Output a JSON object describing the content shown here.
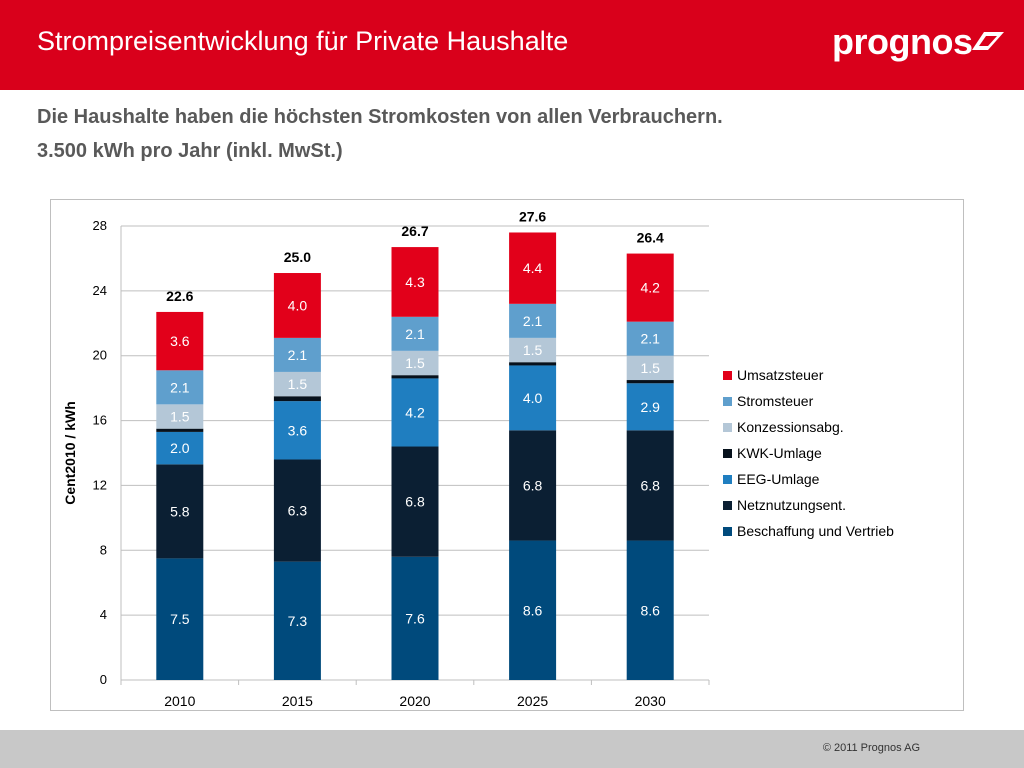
{
  "header": {
    "title": "Strompreisentwicklung für Private Haushalte",
    "logo": "prognos"
  },
  "subtitle": {
    "line1": "Die Haushalte haben die höchsten Stromkosten von allen Verbrauchern.",
    "line2": "3.500 kWh pro Jahr (inkl. MwSt.)"
  },
  "footer": {
    "copyright": "© 2011 Prognos AG"
  },
  "colors": {
    "header_red": "#d9001b",
    "footer_gray": "#c8c8c8"
  },
  "chart_data": {
    "type": "bar",
    "stacked": true,
    "categories": [
      "2010",
      "2015",
      "2020",
      "2025",
      "2030"
    ],
    "ylabel": "Cent2010 / kWh",
    "ylim": [
      0,
      28
    ],
    "yticks": [
      0,
      4,
      8,
      12,
      16,
      20,
      24,
      28
    ],
    "grid": true,
    "legend_position": "right",
    "totals": [
      22.6,
      25.0,
      26.7,
      27.6,
      26.4
    ],
    "series": [
      {
        "name": "Beschaffung und Vertrieb",
        "color": "#004a7c",
        "values": [
          7.5,
          7.3,
          7.6,
          8.6,
          8.6
        ],
        "labels": [
          "7.5",
          "7.3",
          "7.6",
          "8.6",
          "8.6"
        ]
      },
      {
        "name": "Netznutzungsent.",
        "color": "#0b1f33",
        "values": [
          5.8,
          6.3,
          6.8,
          6.8,
          6.8
        ],
        "labels": [
          "5.8",
          "6.3",
          "6.8",
          "6.8",
          "6.8"
        ]
      },
      {
        "name": "EEG-Umlage",
        "color": "#1f7ec0",
        "values": [
          2.0,
          3.6,
          4.2,
          4.0,
          2.9
        ],
        "labels": [
          "2.0",
          "3.6",
          "4.2",
          "4.0",
          "2.9"
        ]
      },
      {
        "name": "KWK-Umlage",
        "color": "#07111c",
        "values": [
          0.2,
          0.3,
          0.2,
          0.2,
          0.2
        ],
        "labels": [
          "",
          "",
          "",
          "",
          ""
        ]
      },
      {
        "name": "Konzessionsabg.",
        "color": "#b4c7d7",
        "values": [
          1.5,
          1.5,
          1.5,
          1.5,
          1.5
        ],
        "labels": [
          "1.5",
          "1.5",
          "1.5",
          "1.5",
          "1.5"
        ]
      },
      {
        "name": "Stromsteuer",
        "color": "#5f9fcd",
        "values": [
          2.1,
          2.1,
          2.1,
          2.1,
          2.1
        ],
        "labels": [
          "2.1",
          "2.1",
          "2.1",
          "2.1",
          "2.1"
        ]
      },
      {
        "name": "Umsatzsteuer",
        "color": "#e2001a",
        "values": [
          3.6,
          4.0,
          4.3,
          4.4,
          4.2
        ],
        "labels": [
          "3.6",
          "4.0",
          "4.3",
          "4.4",
          "4.2"
        ]
      }
    ]
  }
}
